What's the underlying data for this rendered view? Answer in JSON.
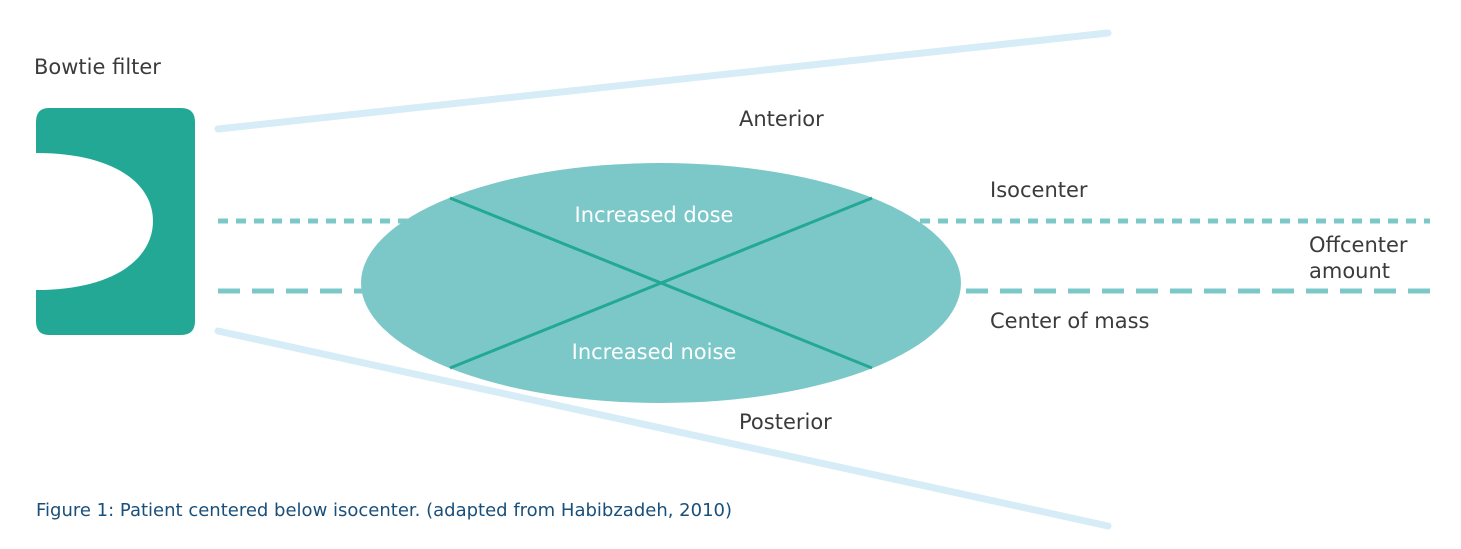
{
  "labels": {
    "bowtie_filter": "Bowtie filter",
    "anterior": "Anterior",
    "isocenter": "Isocenter",
    "offcenter_line1": "Offcenter",
    "offcenter_line2": "amount",
    "center_of_mass": "Center of mass",
    "posterior": "Posterior",
    "increased_dose": "Increased dose",
    "increased_noise": "Increased noise"
  },
  "caption": "Figure 1: Patient centered below isocenter. (adapted from Habibzadeh, 2010)",
  "colors": {
    "filter": "#23a896",
    "ellipse": "#7cc8c8",
    "cross_lines": "#23a896",
    "beam": "#d6ecf6",
    "dashed": "#7cc8c8",
    "label_text": "#3b3b3b",
    "caption_text": "#1a4f7a"
  }
}
